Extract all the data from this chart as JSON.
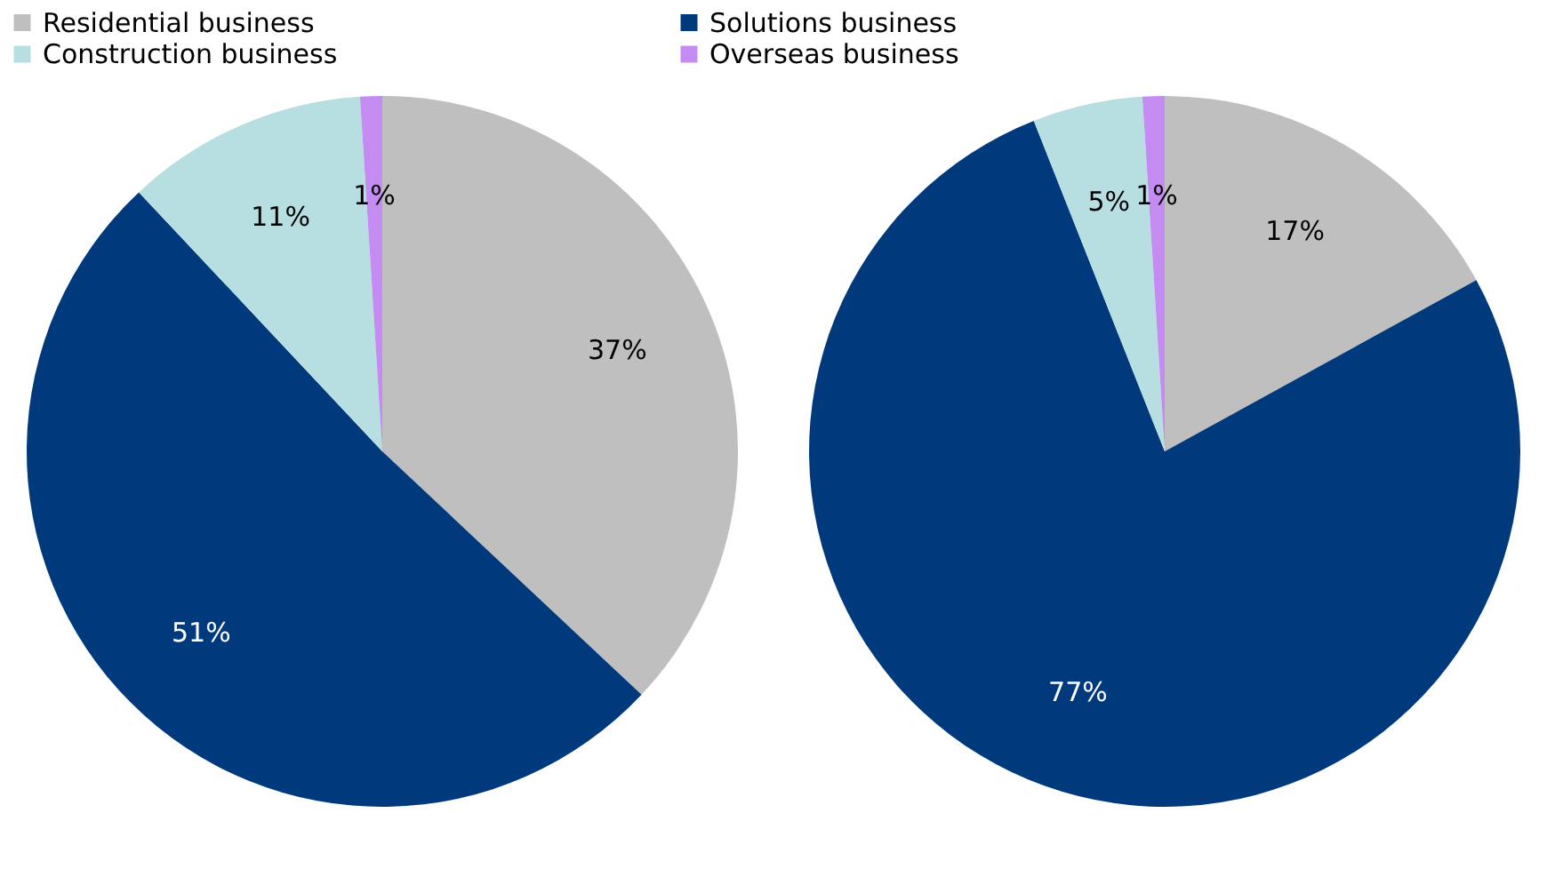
{
  "chart_data": [
    {
      "type": "pie",
      "categories": [
        "Residential business",
        "Solutions business",
        "Construction business",
        "Overseas business"
      ],
      "values": [
        37,
        51,
        11,
        1
      ],
      "colors": [
        "#bfbfbf",
        "#003a7d",
        "#b7dfe1",
        "#c48cf2"
      ],
      "value_labels": [
        "37%",
        "51%",
        "11%",
        "1%"
      ],
      "legend": "top"
    },
    {
      "type": "pie",
      "categories": [
        null,
        null,
        null,
        null
      ],
      "values": [
        17,
        77,
        5,
        1
      ],
      "colors": [
        "#bfbfbf",
        "#003a7d",
        "#b7dfe1",
        "#c48cf2"
      ],
      "value_labels": [
        "17%",
        "77%",
        "5%",
        "1%"
      ]
    }
  ]
}
